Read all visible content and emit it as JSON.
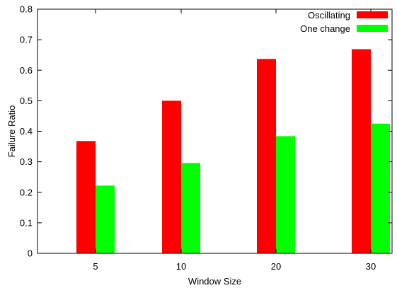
{
  "chart_data": {
    "type": "bar",
    "title": "",
    "xlabel": "Window Size",
    "ylabel": "Failure Ratio",
    "categories": [
      "5",
      "10",
      "20",
      "30"
    ],
    "ylim": [
      0,
      0.8
    ],
    "yticks": [
      "0",
      "0.1",
      "0.2",
      "0.3",
      "0.4",
      "0.5",
      "0.6",
      "0.7",
      "0.8"
    ],
    "grid": false,
    "legend_position": "top-right",
    "series": [
      {
        "name": "Oscillating",
        "color": "#ff0000",
        "values": [
          0.368,
          0.5,
          0.637,
          0.669
        ]
      },
      {
        "name": "One change",
        "color": "#00ff00",
        "values": [
          0.222,
          0.296,
          0.384,
          0.425
        ]
      }
    ]
  }
}
